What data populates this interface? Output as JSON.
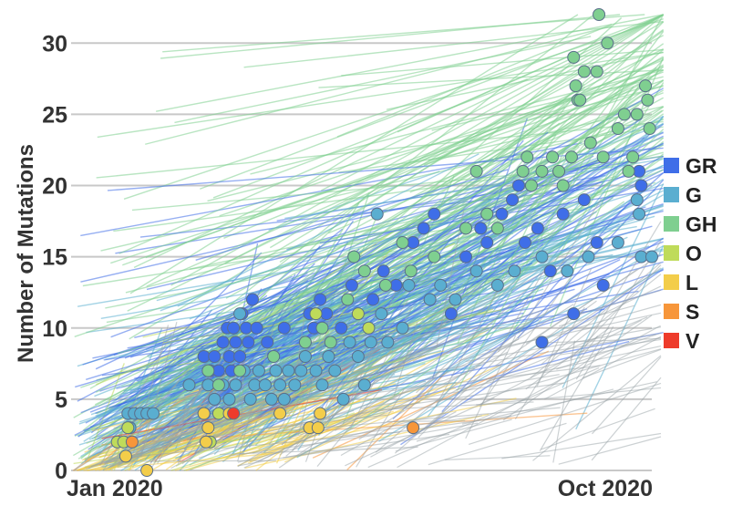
{
  "chart_data": {
    "type": "scatter",
    "title": "",
    "ylabel": "Number of Mutations",
    "xlabel": "",
    "x_tick_labels": [
      "Jan 2020",
      "Oct 2020"
    ],
    "xlim": [
      "2020-01-01",
      "2020-10-01"
    ],
    "ylim": [
      0,
      32
    ],
    "y_ticks": [
      0,
      5,
      10,
      15,
      20,
      25,
      30
    ],
    "grid": "horizontal",
    "legend_position": "right",
    "branches": "phylogenetic tree lines connecting samples, colored by clade",
    "series": [
      {
        "name": "GR",
        "color": "#3f6ee8",
        "points": [
          [
            "2020-03-03",
            8
          ],
          [
            "2020-03-06",
            7
          ],
          [
            "2020-03-08",
            8
          ],
          [
            "2020-03-10",
            7
          ],
          [
            "2020-03-12",
            9
          ],
          [
            "2020-03-14",
            10
          ],
          [
            "2020-03-15",
            8
          ],
          [
            "2020-03-16",
            7
          ],
          [
            "2020-03-17",
            10
          ],
          [
            "2020-03-18",
            9
          ],
          [
            "2020-03-20",
            8
          ],
          [
            "2020-03-21",
            11
          ],
          [
            "2020-03-23",
            10
          ],
          [
            "2020-03-24",
            9
          ],
          [
            "2020-03-26",
            12
          ],
          [
            "2020-03-28",
            10
          ],
          [
            "2020-04-02",
            9
          ],
          [
            "2020-04-10",
            10
          ],
          [
            "2020-04-22",
            11
          ],
          [
            "2020-04-24",
            10
          ],
          [
            "2020-04-27",
            12
          ],
          [
            "2020-04-30",
            11
          ],
          [
            "2020-05-07",
            10
          ],
          [
            "2020-05-12",
            13
          ],
          [
            "2020-05-22",
            12
          ],
          [
            "2020-05-27",
            14
          ],
          [
            "2020-06-02",
            13
          ],
          [
            "2020-06-10",
            16
          ],
          [
            "2020-06-15",
            17
          ],
          [
            "2020-06-20",
            18
          ],
          [
            "2020-06-28",
            11
          ],
          [
            "2020-07-05",
            15
          ],
          [
            "2020-07-12",
            17
          ],
          [
            "2020-07-15",
            16
          ],
          [
            "2020-07-22",
            18
          ],
          [
            "2020-07-27",
            19
          ],
          [
            "2020-07-30",
            20
          ],
          [
            "2020-08-02",
            16
          ],
          [
            "2020-08-08",
            17
          ],
          [
            "2020-08-10",
            9
          ],
          [
            "2020-08-14",
            14
          ],
          [
            "2020-08-20",
            18
          ],
          [
            "2020-08-25",
            11
          ],
          [
            "2020-08-30",
            19
          ],
          [
            "2020-09-05",
            16
          ],
          [
            "2020-09-08",
            13
          ],
          [
            "2020-09-25",
            21
          ],
          [
            "2020-09-26",
            20
          ]
        ]
      },
      {
        "name": "G",
        "color": "#5aaed0",
        "points": [
          [
            "2020-01-27",
            4
          ],
          [
            "2020-01-28",
            3
          ],
          [
            "2020-01-30",
            4
          ],
          [
            "2020-02-02",
            4
          ],
          [
            "2020-02-05",
            4
          ],
          [
            "2020-02-08",
            4
          ],
          [
            "2020-02-25",
            6
          ],
          [
            "2020-03-05",
            6
          ],
          [
            "2020-03-08",
            5
          ],
          [
            "2020-03-12",
            6
          ],
          [
            "2020-03-15",
            5
          ],
          [
            "2020-03-18",
            6
          ],
          [
            "2020-03-20",
            11
          ],
          [
            "2020-03-22",
            7
          ],
          [
            "2020-03-25",
            5
          ],
          [
            "2020-03-27",
            6
          ],
          [
            "2020-03-29",
            7
          ],
          [
            "2020-04-01",
            6
          ],
          [
            "2020-04-04",
            5
          ],
          [
            "2020-04-06",
            7
          ],
          [
            "2020-04-08",
            6
          ],
          [
            "2020-04-10",
            5
          ],
          [
            "2020-04-12",
            7
          ],
          [
            "2020-04-15",
            6
          ],
          [
            "2020-04-18",
            7
          ],
          [
            "2020-04-20",
            8
          ],
          [
            "2020-04-25",
            7
          ],
          [
            "2020-04-28",
            6
          ],
          [
            "2020-05-01",
            8
          ],
          [
            "2020-05-04",
            7
          ],
          [
            "2020-05-08",
            5
          ],
          [
            "2020-05-11",
            9
          ],
          [
            "2020-05-15",
            8
          ],
          [
            "2020-05-18",
            6
          ],
          [
            "2020-05-21",
            9
          ],
          [
            "2020-05-24",
            18
          ],
          [
            "2020-05-26",
            11
          ],
          [
            "2020-05-29",
            9
          ],
          [
            "2020-06-05",
            10
          ],
          [
            "2020-06-08",
            13
          ],
          [
            "2020-06-18",
            12
          ],
          [
            "2020-06-23",
            13
          ],
          [
            "2020-06-30",
            12
          ],
          [
            "2020-07-10",
            14
          ],
          [
            "2020-07-20",
            13
          ],
          [
            "2020-07-28",
            14
          ],
          [
            "2020-08-10",
            15
          ],
          [
            "2020-08-22",
            14
          ],
          [
            "2020-09-01",
            15
          ],
          [
            "2020-09-15",
            16
          ],
          [
            "2020-09-24",
            19
          ],
          [
            "2020-09-25",
            18
          ],
          [
            "2020-09-26",
            15
          ],
          [
            "2020-10-01",
            15
          ]
        ]
      },
      {
        "name": "GH",
        "color": "#7fcf90",
        "points": [
          [
            "2020-03-05",
            7
          ],
          [
            "2020-03-10",
            6
          ],
          [
            "2020-03-20",
            7
          ],
          [
            "2020-04-05",
            8
          ],
          [
            "2020-04-20",
            9
          ],
          [
            "2020-04-28",
            10
          ],
          [
            "2020-05-02",
            9
          ],
          [
            "2020-05-10",
            12
          ],
          [
            "2020-05-13",
            15
          ],
          [
            "2020-05-18",
            14
          ],
          [
            "2020-05-28",
            13
          ],
          [
            "2020-06-05",
            16
          ],
          [
            "2020-06-09",
            14
          ],
          [
            "2020-06-20",
            15
          ],
          [
            "2020-07-05",
            17
          ],
          [
            "2020-07-10",
            21
          ],
          [
            "2020-07-15",
            18
          ],
          [
            "2020-07-20",
            17
          ],
          [
            "2020-08-01",
            21
          ],
          [
            "2020-08-03",
            22
          ],
          [
            "2020-08-05",
            20
          ],
          [
            "2020-08-10",
            21
          ],
          [
            "2020-08-15",
            22
          ],
          [
            "2020-08-18",
            21
          ],
          [
            "2020-08-20",
            20
          ],
          [
            "2020-08-24",
            22
          ],
          [
            "2020-08-25",
            29
          ],
          [
            "2020-08-26",
            27
          ],
          [
            "2020-08-27",
            26
          ],
          [
            "2020-08-28",
            26
          ],
          [
            "2020-08-30",
            28
          ],
          [
            "2020-09-02",
            23
          ],
          [
            "2020-09-05",
            28
          ],
          [
            "2020-09-06",
            32
          ],
          [
            "2020-09-08",
            22
          ],
          [
            "2020-09-10",
            30
          ],
          [
            "2020-09-15",
            24
          ],
          [
            "2020-09-18",
            25
          ],
          [
            "2020-09-20",
            21
          ],
          [
            "2020-09-22",
            22
          ],
          [
            "2020-09-24",
            25
          ],
          [
            "2020-09-28",
            27
          ],
          [
            "2020-09-29",
            26
          ],
          [
            "2020-09-30",
            24
          ]
        ]
      },
      {
        "name": "O",
        "color": "#bfdb5a",
        "points": [
          [
            "2020-01-22",
            2
          ],
          [
            "2020-01-25",
            2
          ],
          [
            "2020-01-27",
            3
          ],
          [
            "2020-03-03",
            4
          ],
          [
            "2020-03-06",
            2
          ],
          [
            "2020-03-10",
            4
          ],
          [
            "2020-04-25",
            11
          ],
          [
            "2020-05-15",
            11
          ],
          [
            "2020-05-20",
            10
          ]
        ]
      },
      {
        "name": "L",
        "color": "#f3cd4a",
        "points": [
          [
            "2020-01-26",
            1
          ],
          [
            "2020-02-05",
            0
          ],
          [
            "2020-03-03",
            4
          ],
          [
            "2020-03-04",
            2
          ],
          [
            "2020-03-05",
            3
          ],
          [
            "2020-03-15",
            4
          ],
          [
            "2020-04-08",
            4
          ],
          [
            "2020-04-22",
            3
          ],
          [
            "2020-04-26",
            3
          ],
          [
            "2020-04-27",
            4
          ]
        ]
      },
      {
        "name": "S",
        "color": "#f7963a",
        "points": [
          [
            "2020-01-29",
            2
          ],
          [
            "2020-06-10",
            3
          ]
        ]
      },
      {
        "name": "V",
        "color": "#ee3b2b",
        "points": [
          [
            "2020-03-17",
            4
          ]
        ]
      }
    ]
  }
}
